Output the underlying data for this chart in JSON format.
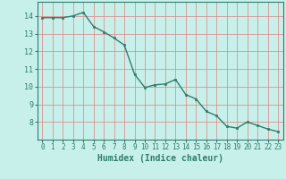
{
  "x": [
    0,
    1,
    2,
    3,
    4,
    5,
    6,
    7,
    8,
    9,
    10,
    11,
    12,
    13,
    14,
    15,
    16,
    17,
    18,
    19,
    20,
    21,
    22,
    23
  ],
  "y": [
    13.9,
    13.9,
    13.9,
    14.0,
    14.2,
    13.4,
    13.1,
    12.75,
    12.35,
    10.7,
    9.95,
    10.1,
    10.15,
    10.4,
    9.55,
    9.3,
    8.6,
    8.35,
    7.75,
    7.65,
    8.0,
    7.8,
    7.6,
    7.45
  ],
  "xlabel": "Humidex (Indice chaleur)",
  "xlim": [
    -0.5,
    23.5
  ],
  "ylim": [
    7.0,
    14.8
  ],
  "yticks": [
    8,
    9,
    10,
    11,
    12,
    13,
    14
  ],
  "xticks": [
    0,
    1,
    2,
    3,
    4,
    5,
    6,
    7,
    8,
    9,
    10,
    11,
    12,
    13,
    14,
    15,
    16,
    17,
    18,
    19,
    20,
    21,
    22,
    23
  ],
  "line_color": "#2e7d6e",
  "marker_color": "#2e7d6e",
  "bg_color": "#c8f0ea",
  "grid_color": "#e08080",
  "axes_color": "#2e7d6e",
  "tick_label_size": 5.5,
  "xlabel_size": 7.0
}
